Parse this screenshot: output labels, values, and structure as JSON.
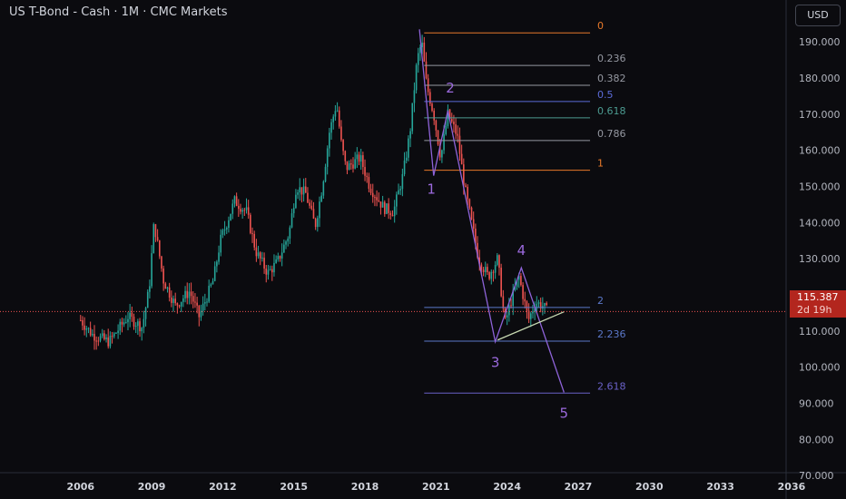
{
  "header": {
    "title": "US T-Bond - Cash · 1M · CMC Markets",
    "currency_button": "USD"
  },
  "price_tag": {
    "price": "115.387",
    "countdown": "2d 19h"
  },
  "colors": {
    "background": "#0b0b0f",
    "up": "#26a69a",
    "down": "#ef5350",
    "wave": "#8e63d8",
    "wave_label": "#9c6ade",
    "trendline": "#c8d9b2",
    "current_price_line": "#ef5350"
  },
  "chart_data": {
    "type": "candlestick",
    "title": "US T-Bond - Cash · 1M · CMC Markets",
    "y_axis": {
      "ticks": [
        "190.000",
        "180.000",
        "170.000",
        "160.000",
        "150.000",
        "140.000",
        "130.000",
        "120.000",
        "110.000",
        "100.000",
        "90.000",
        "80.000",
        "70.000"
      ],
      "range": [
        63.5,
        201.6
      ],
      "grid": false
    },
    "x_axis": {
      "ticks": [
        "2006",
        "2009",
        "2012",
        "2015",
        "2018",
        "2021",
        "2024",
        "2027",
        "2030",
        "2033",
        "2036"
      ],
      "range": [
        2002.6,
        2038.3
      ]
    },
    "current_price": 115.387,
    "series_anchors": [
      [
        2006.0,
        113
      ],
      [
        2006.5,
        109
      ],
      [
        2007.2,
        107
      ],
      [
        2008.0,
        114
      ],
      [
        2008.6,
        111
      ],
      [
        2008.9,
        122
      ],
      [
        2009.1,
        140
      ],
      [
        2009.5,
        124
      ],
      [
        2010.0,
        117
      ],
      [
        2010.6,
        121
      ],
      [
        2011.0,
        114
      ],
      [
        2011.6,
        124
      ],
      [
        2011.9,
        135
      ],
      [
        2012.5,
        146
      ],
      [
        2013.0,
        143
      ],
      [
        2013.4,
        132
      ],
      [
        2013.9,
        126
      ],
      [
        2014.3,
        129
      ],
      [
        2014.8,
        137
      ],
      [
        2015.1,
        150
      ],
      [
        2015.5,
        148
      ],
      [
        2015.9,
        139
      ],
      [
        2016.2,
        150
      ],
      [
        2016.5,
        165
      ],
      [
        2016.8,
        173
      ],
      [
        2017.0,
        162
      ],
      [
        2017.2,
        155
      ],
      [
        2017.8,
        158
      ],
      [
        2018.2,
        150
      ],
      [
        2018.8,
        144
      ],
      [
        2019.2,
        143
      ],
      [
        2019.6,
        153
      ],
      [
        2019.9,
        165
      ],
      [
        2020.2,
        185
      ],
      [
        2020.4,
        190
      ],
      [
        2020.6,
        178
      ],
      [
        2020.9,
        170
      ],
      [
        2021.2,
        158
      ],
      [
        2021.5,
        170
      ],
      [
        2021.9,
        164
      ],
      [
        2022.2,
        150
      ],
      [
        2022.5,
        140
      ],
      [
        2022.8,
        130
      ],
      [
        2023.2,
        125
      ],
      [
        2023.6,
        130
      ],
      [
        2023.9,
        112
      ],
      [
        2024.2,
        119
      ],
      [
        2024.5,
        125
      ],
      [
        2024.9,
        113
      ],
      [
        2025.2,
        118
      ],
      [
        2025.5,
        117
      ],
      [
        2025.7,
        115.4
      ]
    ],
    "fib_retracement": {
      "x_start": 2020.5,
      "x_end": 2027.5,
      "levels": [
        {
          "label": "0",
          "value": 192.5,
          "color": "#e8792a"
        },
        {
          "label": "0.236",
          "value": 183.5,
          "color": "#9598a1"
        },
        {
          "label": "0.382",
          "value": 178.0,
          "color": "#9598a1"
        },
        {
          "label": "0.5",
          "value": 173.5,
          "color": "#5b6bd8"
        },
        {
          "label": "0.618",
          "value": 169.0,
          "color": "#4c9b91"
        },
        {
          "label": "0.786",
          "value": 162.7,
          "color": "#9598a1"
        },
        {
          "label": "1",
          "value": 154.5,
          "color": "#e8792a"
        }
      ]
    },
    "fib_extension": {
      "x_start": 2020.5,
      "x_end": 2027.5,
      "levels": [
        {
          "label": "2",
          "value": 116.5,
          "color": "#5b78c9"
        },
        {
          "label": "2.236",
          "value": 107.2,
          "color": "#5b78c9"
        },
        {
          "label": "2.618",
          "value": 92.8,
          "color": "#6b62c9"
        }
      ]
    },
    "elliott_wave": {
      "points": [
        [
          2020.3,
          193.5
        ],
        [
          2020.9,
          153.0
        ],
        [
          2021.5,
          171.0
        ],
        [
          2023.5,
          107.0
        ],
        [
          2024.6,
          127.5
        ],
        [
          2026.4,
          93.0
        ]
      ],
      "labels": [
        {
          "text": "1",
          "x": 2020.8,
          "y": 148
        },
        {
          "text": "2",
          "x": 2021.6,
          "y": 176
        },
        {
          "text": "3",
          "x": 2023.5,
          "y": 100
        },
        {
          "text": "4",
          "x": 2024.6,
          "y": 131
        },
        {
          "text": "5",
          "x": 2026.4,
          "y": 86
        }
      ]
    },
    "trendline": [
      [
        2023.6,
        107.5
      ],
      [
        2026.4,
        115.3
      ]
    ]
  }
}
